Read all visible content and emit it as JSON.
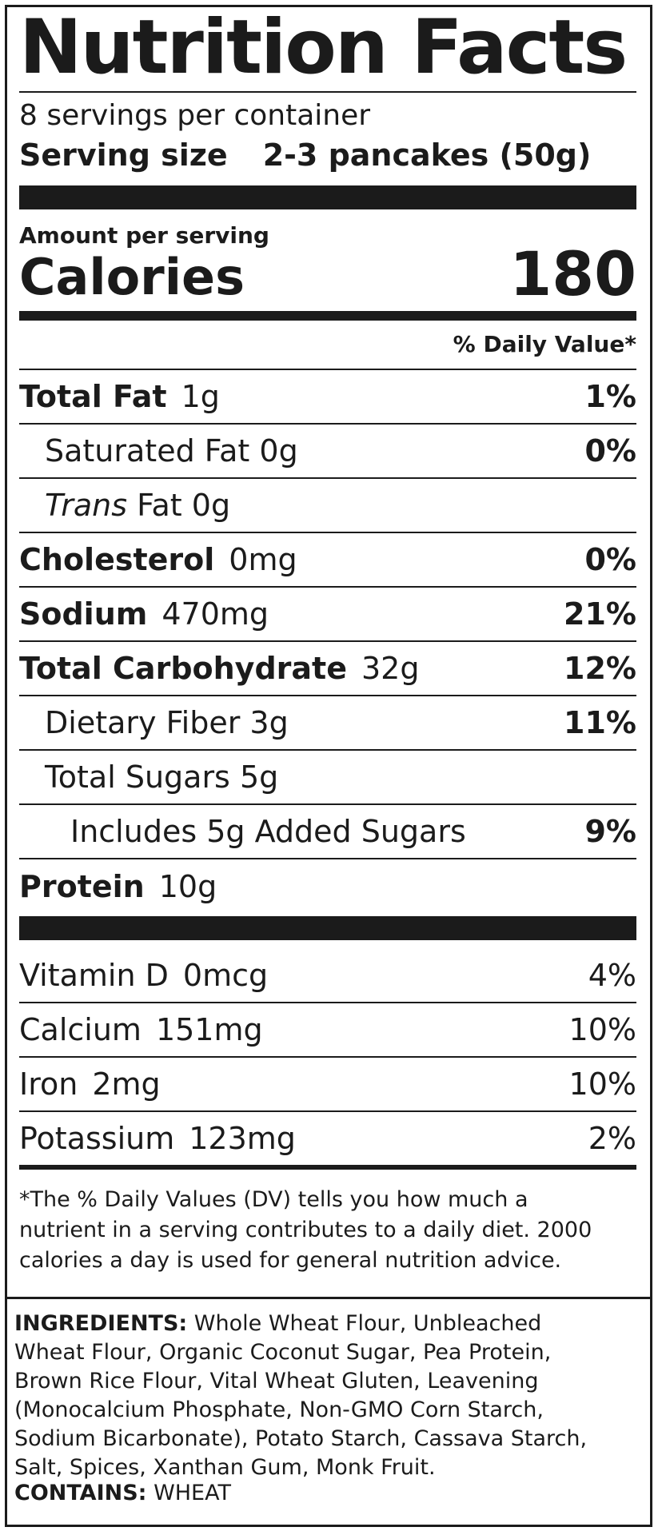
{
  "title": "Nutrition Facts",
  "servings_per_container": "8 servings per container",
  "serving_size_label": "Serving size",
  "serving_size_value": "2-3 pancakes (50g)",
  "amount_per_serving": "Amount per serving",
  "calories_label": "Calories",
  "calories_value": "180",
  "daily_value_header": "% Daily Value*",
  "nutrients": [
    {
      "name": "Total Fat",
      "amount": "1g",
      "dv": "1%"
    },
    {
      "name": "Saturated Fat 0g",
      "amount": "",
      "dv": "0%"
    },
    {
      "name_italic": "Trans",
      "name_rest": " Fat 0g",
      "dv": ""
    },
    {
      "name": "Cholesterol",
      "amount": "0mg",
      "dv": "0%"
    },
    {
      "name": "Sodium",
      "amount": "470mg",
      "dv": "21%"
    },
    {
      "name": "Total Carbohydrate",
      "amount": "32g",
      "dv": "12%"
    },
    {
      "name": "Dietary Fiber 3g",
      "amount": "",
      "dv": "11%"
    },
    {
      "name": "Total Sugars 5g",
      "amount": "",
      "dv": ""
    },
    {
      "name": "Includes 5g Added Sugars",
      "amount": "",
      "dv": "9%"
    },
    {
      "name": "Protein",
      "amount": "10g",
      "dv": ""
    }
  ],
  "minerals": [
    {
      "name": "Vitamin D",
      "amount": "0mcg",
      "dv": "4%"
    },
    {
      "name": "Calcium",
      "amount": "151mg",
      "dv": "10%"
    },
    {
      "name": "Iron",
      "amount": "2mg",
      "dv": "10%"
    },
    {
      "name": "Potassium",
      "amount": "123mg",
      "dv": "2%"
    }
  ],
  "footnote": [
    "*The % Daily Values (DV) tells you how much a",
    "nutrient in a serving contributes to a daily diet. 2000",
    "calories a day is used for general nutrition advice."
  ],
  "ingredients_label": "INGREDIENTS:",
  "ingredients_lines": [
    "Whole Wheat Flour, Unbleached",
    "Wheat Flour, Organic Coconut Sugar, Pea Protein,",
    "Brown Rice Flour, Vital Wheat Gluten, Leavening",
    "(Monocalcium Phosphate, Non-GMO Corn Starch,",
    "Sodium Bicarbonate), Potato Starch, Cassava Starch,",
    "Salt, Spices, Xanthan Gum, Monk Fruit."
  ],
  "contains_label": "CONTAINS:",
  "contains_value": "WHEAT"
}
